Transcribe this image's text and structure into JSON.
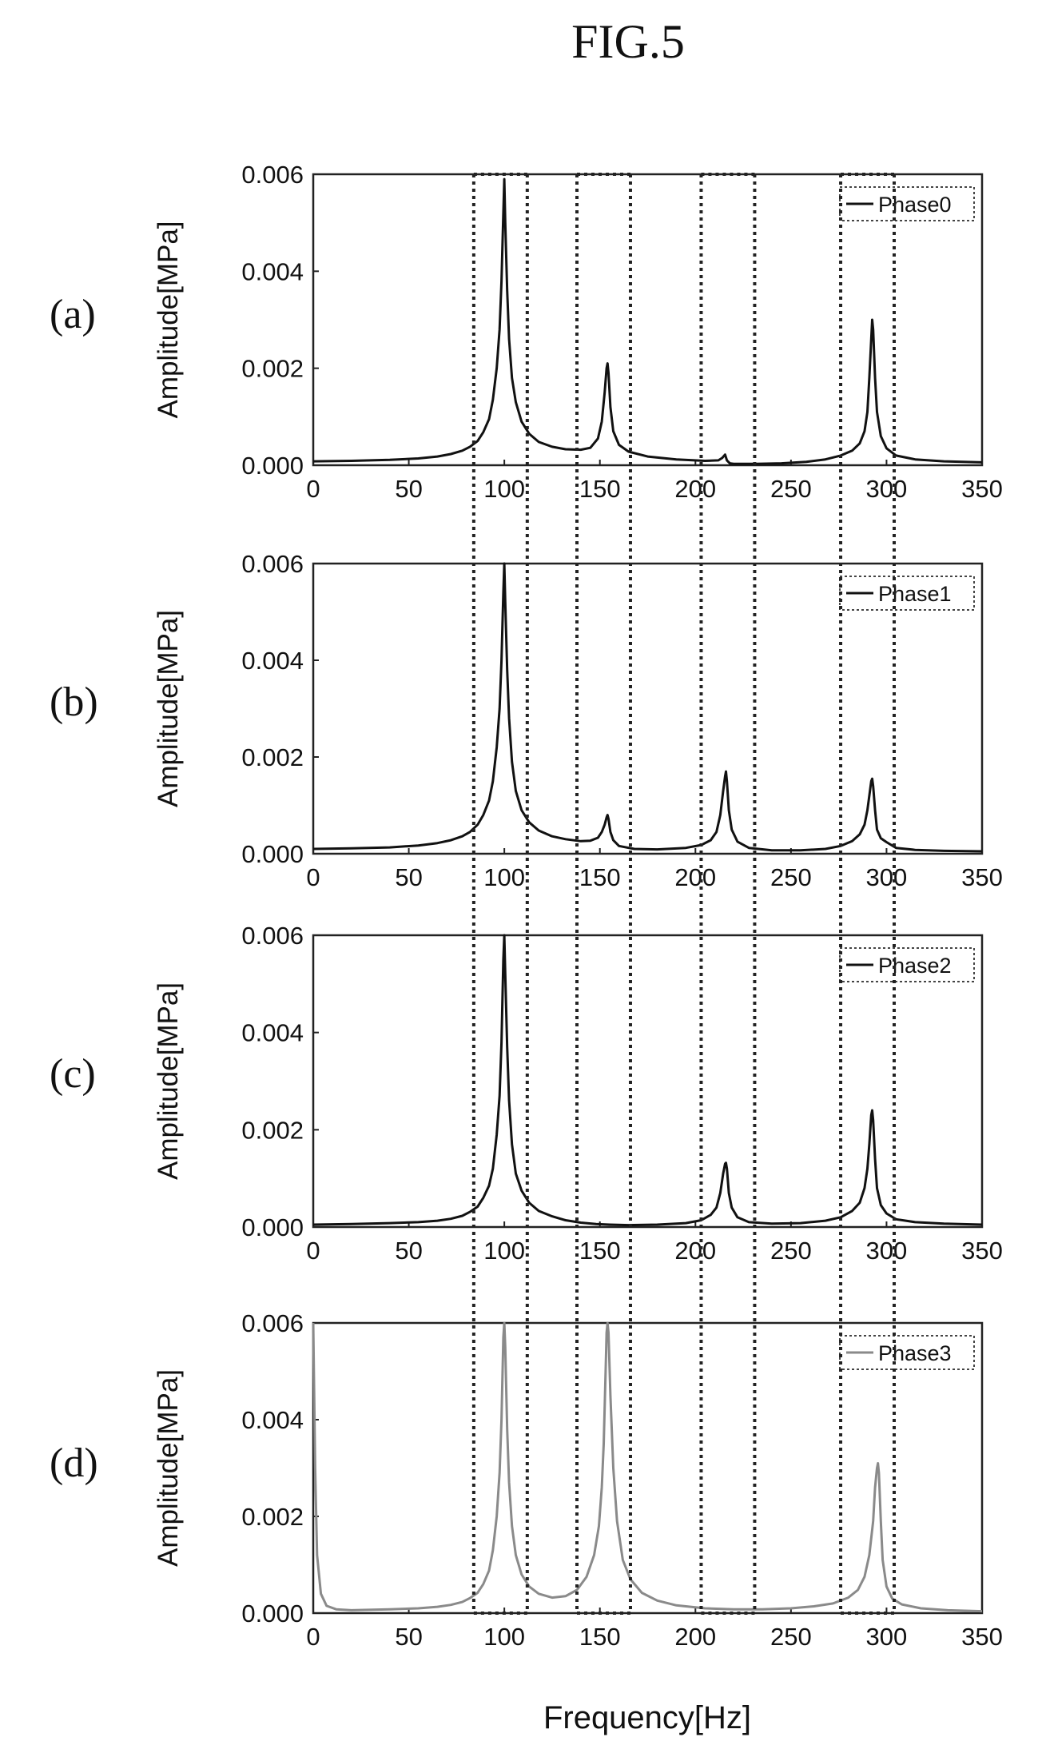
{
  "figure_title": "FIG.5",
  "x_axis_label": "Frequency[Hz]",
  "colors": {
    "dark_series": "#111111",
    "light_series": "#8a8a8a",
    "guide_lines": "#222222"
  },
  "highlight_bands_hz": [
    [
      84,
      112
    ],
    [
      138,
      166
    ],
    [
      203,
      231
    ],
    [
      276,
      304
    ]
  ],
  "chart_data": [
    {
      "type": "line",
      "panel_label": "(a)",
      "ylabel": "Amplitude[MPa]",
      "xlim": [
        0,
        350
      ],
      "ylim": [
        0,
        0.006
      ],
      "xticks": [
        "0",
        "50",
        "100",
        "150",
        "200",
        "250",
        "300",
        "350"
      ],
      "yticks": [
        "0.000",
        "0.002",
        "0.004",
        "0.006"
      ],
      "legend_position": "top-right",
      "series": [
        {
          "name": "Phase0",
          "color": "#111111",
          "x": [
            0,
            20,
            40,
            55,
            65,
            72,
            78,
            82,
            86,
            89,
            92,
            94,
            96,
            97.5,
            98.5,
            99.5,
            100,
            100.5,
            101.5,
            102.5,
            104,
            106,
            109,
            113,
            118,
            125,
            132,
            140,
            145,
            149,
            151,
            152.5,
            153.5,
            154,
            154.5,
            155.5,
            157,
            160,
            165,
            175,
            190,
            205,
            212,
            214,
            215.5,
            216.5,
            218,
            220,
            232,
            245,
            258,
            268,
            276,
            282,
            286,
            288.5,
            290,
            291,
            292,
            292.5,
            293,
            294,
            295,
            297,
            300,
            305,
            315,
            330,
            350
          ],
          "y": [
            8e-05,
            9e-05,
            0.00011,
            0.00014,
            0.00018,
            0.00023,
            0.0003,
            0.00038,
            0.0005,
            0.00068,
            0.00095,
            0.00135,
            0.002,
            0.0028,
            0.0038,
            0.0052,
            0.0059,
            0.005,
            0.0036,
            0.0026,
            0.0018,
            0.0013,
            0.0009,
            0.00065,
            0.00048,
            0.00038,
            0.00033,
            0.00032,
            0.00036,
            0.00055,
            0.0009,
            0.0015,
            0.002,
            0.0021,
            0.0019,
            0.0012,
            0.0007,
            0.00042,
            0.00028,
            0.00018,
            0.00012,
            9e-05,
            0.0001,
            0.00015,
            0.00022,
            0.0001,
            4e-05,
            3e-05,
            3e-05,
            4e-05,
            7e-05,
            0.00012,
            0.0002,
            0.0003,
            0.00045,
            0.0007,
            0.0011,
            0.0018,
            0.0026,
            0.003,
            0.0028,
            0.0018,
            0.0011,
            0.0006,
            0.00035,
            0.0002,
            0.00012,
            8e-05,
            6e-05
          ]
        }
      ]
    },
    {
      "type": "line",
      "panel_label": "(b)",
      "ylabel": "Amplitude[MPa]",
      "xlim": [
        0,
        350
      ],
      "ylim": [
        0,
        0.006
      ],
      "xticks": [
        "0",
        "50",
        "100",
        "150",
        "200",
        "250",
        "300",
        "350"
      ],
      "yticks": [
        "0.000",
        "0.002",
        "0.004",
        "0.006"
      ],
      "legend_position": "top-right",
      "series": [
        {
          "name": "Phase1",
          "color": "#111111",
          "x": [
            0,
            20,
            40,
            55,
            65,
            72,
            78,
            82,
            86,
            89,
            92,
            94,
            96,
            97.5,
            98.5,
            99.5,
            100,
            100.5,
            101.5,
            102.5,
            104,
            106,
            109,
            113,
            118,
            125,
            132,
            140,
            145,
            149,
            151,
            152.5,
            153.5,
            154,
            154.5,
            155.5,
            157,
            160,
            168,
            180,
            195,
            203,
            208,
            211,
            213,
            214.5,
            215.5,
            216,
            216.5,
            217.5,
            219,
            222,
            228,
            240,
            255,
            268,
            276,
            282,
            286,
            288.5,
            290,
            291,
            292,
            292.5,
            293,
            294,
            295,
            297,
            300,
            305,
            315,
            330,
            350
          ],
          "y": [
            0.0001,
            0.00011,
            0.00013,
            0.00017,
            0.00022,
            0.00028,
            0.00036,
            0.00045,
            0.0006,
            0.0008,
            0.0011,
            0.0015,
            0.0022,
            0.003,
            0.004,
            0.0054,
            0.006,
            0.0052,
            0.0038,
            0.0028,
            0.0019,
            0.0013,
            0.0009,
            0.00065,
            0.00048,
            0.00036,
            0.0003,
            0.00026,
            0.00027,
            0.00033,
            0.00045,
            0.0006,
            0.00075,
            0.0008,
            0.00072,
            0.00045,
            0.00028,
            0.00016,
            0.0001,
            9e-05,
            0.00012,
            0.00018,
            0.00028,
            0.00045,
            0.0008,
            0.0013,
            0.0016,
            0.0017,
            0.0015,
            0.0009,
            0.0005,
            0.00025,
            0.00012,
            7e-05,
            7e-05,
            0.0001,
            0.00016,
            0.00026,
            0.0004,
            0.0006,
            0.0009,
            0.0012,
            0.0015,
            0.00155,
            0.0014,
            0.0009,
            0.0005,
            0.00032,
            0.00024,
            0.00012,
            8e-05,
            6e-05,
            5e-05
          ]
        }
      ]
    },
    {
      "type": "line",
      "panel_label": "(c)",
      "ylabel": "Amplitude[MPa]",
      "xlim": [
        0,
        350
      ],
      "ylim": [
        0,
        0.006
      ],
      "xticks": [
        "0",
        "50",
        "100",
        "150",
        "200",
        "250",
        "300",
        "350"
      ],
      "yticks": [
        "0.000",
        "0.002",
        "0.004",
        "0.006"
      ],
      "legend_position": "top-right",
      "series": [
        {
          "name": "Phase2",
          "color": "#111111",
          "x": [
            0,
            20,
            40,
            55,
            65,
            72,
            78,
            82,
            86,
            89,
            92,
            94,
            96,
            97.5,
            98.5,
            99.5,
            100,
            100.5,
            101.5,
            102.5,
            104,
            106,
            109,
            113,
            118,
            125,
            132,
            140,
            148,
            155,
            165,
            180,
            195,
            203,
            208,
            211,
            213,
            214.5,
            215.5,
            216,
            216.5,
            217.5,
            219,
            222,
            228,
            240,
            255,
            268,
            276,
            282,
            286,
            288.5,
            290,
            291,
            292,
            292.5,
            293,
            294,
            295,
            297,
            300,
            305,
            315,
            330,
            350
          ],
          "y": [
            5e-05,
            6e-05,
            8e-05,
            0.0001,
            0.00013,
            0.00017,
            0.00023,
            0.00031,
            0.00042,
            0.0006,
            0.00085,
            0.0012,
            0.0019,
            0.0027,
            0.0038,
            0.0055,
            0.006,
            0.0052,
            0.0037,
            0.0026,
            0.0017,
            0.0011,
            0.00075,
            0.0005,
            0.00033,
            0.00022,
            0.00014,
            9e-05,
            6e-05,
            5e-05,
            4e-05,
            5e-05,
            8e-05,
            0.00014,
            0.00025,
            0.0004,
            0.0007,
            0.0011,
            0.0013,
            0.00132,
            0.0012,
            0.0007,
            0.0004,
            0.0002,
            0.0001,
            7e-05,
            8e-05,
            0.00013,
            0.0002,
            0.00033,
            0.0005,
            0.0008,
            0.0012,
            0.0017,
            0.0023,
            0.0024,
            0.0022,
            0.0014,
            0.0008,
            0.00045,
            0.00028,
            0.00016,
            0.0001,
            7e-05,
            5e-05
          ]
        }
      ]
    },
    {
      "type": "line",
      "panel_label": "(d)",
      "ylabel": "Amplitude[MPa]",
      "xlim": [
        0,
        350
      ],
      "ylim": [
        0,
        0.006
      ],
      "xticks": [
        "0",
        "50",
        "100",
        "150",
        "200",
        "250",
        "300",
        "350"
      ],
      "yticks": [
        "0.000",
        "0.002",
        "0.004",
        "0.006"
      ],
      "legend_position": "top-right",
      "series": [
        {
          "name": "Phase3",
          "color": "#8a8a8a",
          "x": [
            0,
            1,
            2,
            4,
            7,
            12,
            20,
            40,
            55,
            65,
            72,
            78,
            82,
            86,
            89,
            92,
            94,
            96,
            97.5,
            98.5,
            99.5,
            100,
            100.5,
            101.5,
            102.5,
            104,
            106,
            109,
            113,
            118,
            125,
            132,
            138,
            143,
            147,
            149.5,
            151,
            152,
            153,
            153.5,
            154,
            154.5,
            155.5,
            157,
            159,
            162,
            166,
            172,
            180,
            190,
            205,
            220,
            235,
            250,
            262,
            272,
            280,
            285,
            288.5,
            291,
            293,
            294,
            295,
            295.5,
            296,
            297,
            298,
            300,
            303,
            308,
            318,
            332,
            350
          ],
          "y": [
            0.006,
            0.003,
            0.0012,
            0.0004,
            0.00015,
            8e-05,
            6e-05,
            8e-05,
            0.0001,
            0.00013,
            0.00017,
            0.00023,
            0.00031,
            0.00042,
            0.0006,
            0.00088,
            0.0013,
            0.002,
            0.0029,
            0.004,
            0.0057,
            0.006,
            0.0055,
            0.0038,
            0.0027,
            0.0018,
            0.0012,
            0.0008,
            0.00055,
            0.0004,
            0.00032,
            0.00035,
            0.00048,
            0.00075,
            0.0012,
            0.0018,
            0.0026,
            0.0035,
            0.005,
            0.0058,
            0.006,
            0.0058,
            0.0045,
            0.003,
            0.0019,
            0.0011,
            0.0007,
            0.00042,
            0.00026,
            0.00016,
            0.0001,
            8e-05,
            8e-05,
            0.0001,
            0.00014,
            0.0002,
            0.00032,
            0.00048,
            0.00075,
            0.0012,
            0.0019,
            0.0026,
            0.003,
            0.0031,
            0.0029,
            0.0019,
            0.0011,
            0.00055,
            0.0003,
            0.00018,
            0.0001,
            6e-05,
            4e-05
          ]
        }
      ]
    }
  ]
}
